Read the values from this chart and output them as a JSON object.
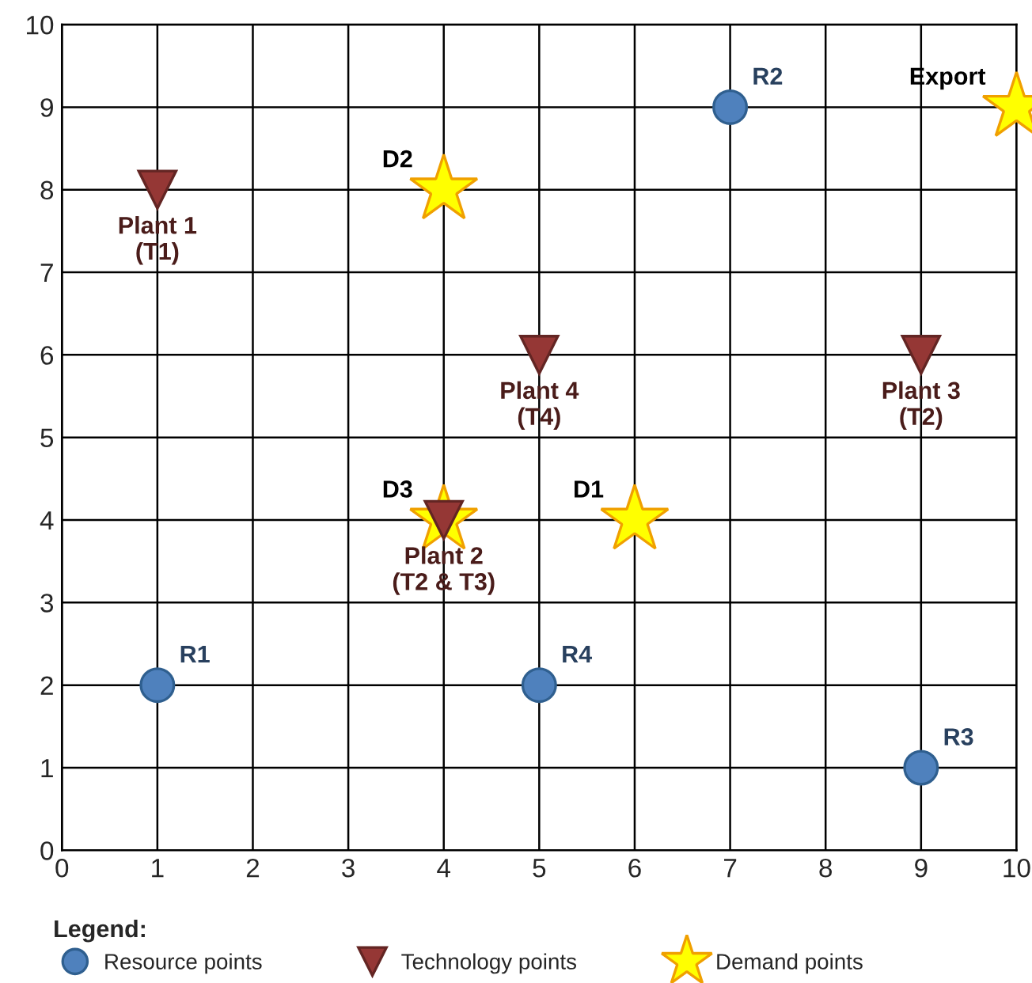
{
  "chart_data": {
    "type": "scatter",
    "xlim": [
      0,
      10
    ],
    "ylim": [
      0,
      10
    ],
    "xticks": [
      0,
      1,
      2,
      3,
      4,
      5,
      6,
      7,
      8,
      9,
      10
    ],
    "yticks": [
      0,
      1,
      2,
      3,
      4,
      5,
      6,
      7,
      8,
      9,
      10
    ],
    "grid": true,
    "legend": "bottom",
    "legend_title": "Legend:",
    "series": [
      {
        "name": "Resource points",
        "color": "#4f81bd",
        "marker": "circle",
        "x": [
          1,
          7,
          9,
          5
        ],
        "values": [
          2,
          9,
          1,
          2
        ],
        "value_labels": [
          "R1",
          "R2",
          "R3",
          "R4"
        ]
      },
      {
        "name": "Technology points",
        "color": "#953735",
        "marker": "triangle",
        "x": [
          1,
          4,
          9,
          5
        ],
        "values": [
          8,
          4,
          6,
          6
        ],
        "value_labels": [
          "Plant 1\n(T1)",
          "Plant 2\n(T2 & T3)",
          "Plant 3\n(T2)",
          "Plant 4\n(T4)"
        ]
      },
      {
        "name": "Demand points",
        "color": "#ffff00",
        "marker": "star",
        "x": [
          6,
          4,
          4,
          10
        ],
        "values": [
          4,
          8,
          4,
          9
        ],
        "value_labels": [
          "D1",
          "D2",
          "D3",
          "Export"
        ]
      }
    ]
  }
}
